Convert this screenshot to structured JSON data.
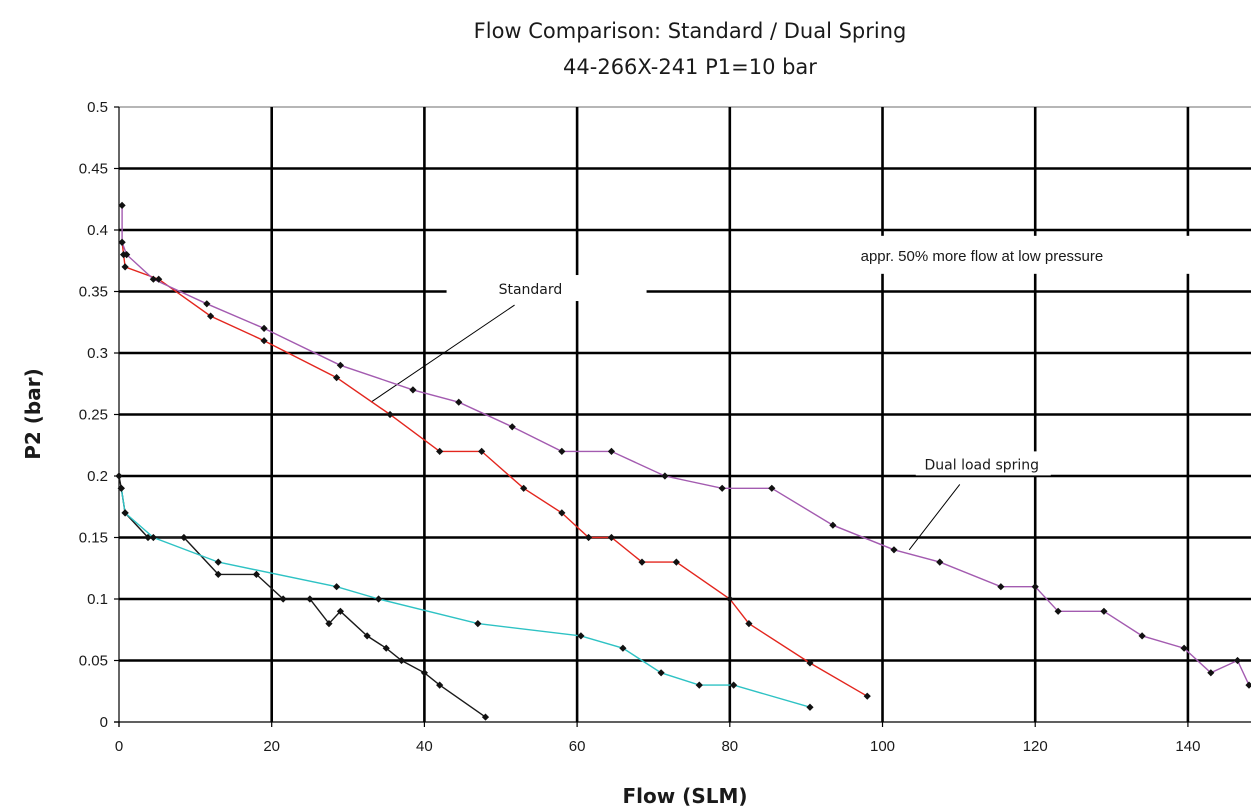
{
  "chart_data": {
    "type": "line",
    "title": "Flow Comparison: Standard / Dual Spring",
    "subtitle": "44-266X-241 P1=10 bar",
    "xlabel": "Flow (SLM)",
    "ylabel": "P2 (bar)",
    "xlim": [
      0,
      148
    ],
    "ylim": [
      0,
      0.5
    ],
    "x_ticks": [
      0,
      20,
      40,
      60,
      80,
      100,
      120,
      140
    ],
    "y_ticks": [
      0,
      0.05,
      0.1,
      0.15,
      0.2,
      0.25,
      0.3,
      0.35,
      0.4,
      0.45,
      0.5
    ],
    "x_tick_labels": [
      "0",
      "20",
      "40",
      "60",
      "80",
      "100",
      "120",
      "140"
    ],
    "y_tick_labels": [
      "0",
      "0.05",
      "0.1",
      "0.15",
      "0.2",
      "0.25",
      "0.3",
      "0.35",
      "0.4",
      "0.45",
      "0.5"
    ],
    "grid": true,
    "legend": "none",
    "series": [
      {
        "color": "#e3261e",
        "points": [
          [
            0.4,
            0.39
          ],
          [
            0.6,
            0.38
          ],
          [
            0.8,
            0.37
          ],
          [
            5.2,
            0.36
          ],
          [
            12,
            0.33
          ],
          [
            19,
            0.31
          ],
          [
            28.5,
            0.28
          ],
          [
            35.5,
            0.25
          ],
          [
            42,
            0.22
          ],
          [
            47.5,
            0.22
          ],
          [
            53,
            0.19
          ],
          [
            58,
            0.17
          ],
          [
            61.5,
            0.15
          ],
          [
            64.5,
            0.15
          ],
          [
            68.5,
            0.13
          ],
          [
            73,
            0.13
          ],
          [
            80,
            0.1
          ],
          [
            82.5,
            0.08
          ],
          [
            90.5,
            0.048
          ],
          [
            98,
            0.021
          ]
        ]
      },
      {
        "color": "#a35bb0",
        "points": [
          [
            0.4,
            0.42
          ],
          [
            0.4,
            0.39
          ],
          [
            1,
            0.38
          ],
          [
            4.5,
            0.36
          ],
          [
            11.5,
            0.34
          ],
          [
            19,
            0.32
          ],
          [
            29,
            0.29
          ],
          [
            38.5,
            0.27
          ],
          [
            44.5,
            0.26
          ],
          [
            51.5,
            0.24
          ],
          [
            58,
            0.22
          ],
          [
            64.5,
            0.22
          ],
          [
            71.5,
            0.2
          ],
          [
            79,
            0.19
          ],
          [
            85.5,
            0.19
          ],
          [
            93.5,
            0.16
          ],
          [
            101.5,
            0.14
          ],
          [
            107.5,
            0.13
          ],
          [
            115.5,
            0.11
          ],
          [
            120,
            0.11
          ],
          [
            123,
            0.09
          ],
          [
            129,
            0.09
          ],
          [
            134,
            0.07
          ],
          [
            139.5,
            0.06
          ],
          [
            143,
            0.04
          ],
          [
            146.5,
            0.05
          ],
          [
            148,
            0.03
          ]
        ]
      },
      {
        "color": "#1a1a1a",
        "points": [
          [
            0,
            0.2
          ],
          [
            0.3,
            0.19
          ],
          [
            0.8,
            0.17
          ],
          [
            3.8,
            0.15
          ],
          [
            8.5,
            0.15
          ],
          [
            13,
            0.12
          ],
          [
            18,
            0.12
          ],
          [
            21.5,
            0.1
          ],
          [
            25,
            0.1
          ],
          [
            27.5,
            0.08
          ],
          [
            29,
            0.09
          ],
          [
            32.5,
            0.07
          ],
          [
            35,
            0.06
          ],
          [
            37,
            0.05
          ],
          [
            40,
            0.04
          ],
          [
            42,
            0.03
          ],
          [
            48,
            0.004
          ]
        ]
      },
      {
        "color": "#2ec2c4",
        "points": [
          [
            0.3,
            0.19
          ],
          [
            0.8,
            0.17
          ],
          [
            4.5,
            0.15
          ],
          [
            13,
            0.13
          ],
          [
            28.5,
            0.11
          ],
          [
            34,
            0.1
          ],
          [
            47,
            0.08
          ],
          [
            60.5,
            0.07
          ],
          [
            66,
            0.06
          ],
          [
            71,
            0.04
          ],
          [
            76,
            0.03
          ],
          [
            80.5,
            0.03
          ],
          [
            90.5,
            0.012
          ]
        ]
      }
    ],
    "annotations": [
      {
        "text": "Standard",
        "anchor": [
          33,
          0.26
        ],
        "label_at": [
          56,
          0.352
        ]
      },
      {
        "text": "Dual load spring",
        "anchor": [
          103.5,
          0.14
        ],
        "label_at": [
          113,
          0.207
        ]
      },
      {
        "text": "appr. 50% more flow at low pressure",
        "anchor": [
          118,
          0.379
        ]
      }
    ]
  }
}
